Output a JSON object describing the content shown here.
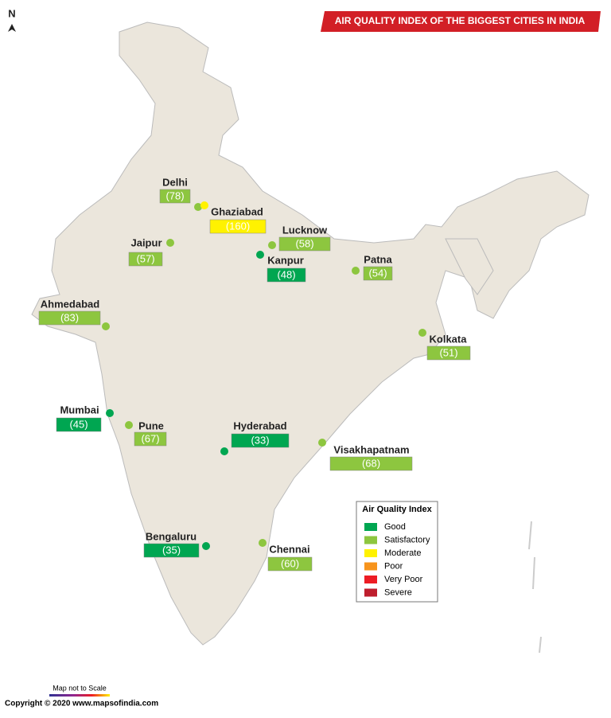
{
  "header": {
    "title": "AIR QUALITY INDEX OF THE BIGGEST CITIES IN INDIA",
    "north": "N"
  },
  "cities": [
    {
      "name": "Delhi",
      "aqi": 78,
      "aqi_label": "(78)",
      "category": 1
    },
    {
      "name": "Ghaziabad",
      "aqi": 160,
      "aqi_label": "(160)",
      "category": 2
    },
    {
      "name": "Lucknow",
      "aqi": 58,
      "aqi_label": "(58)",
      "category": 1
    },
    {
      "name": "Kanpur",
      "aqi": 48,
      "aqi_label": "(48)",
      "category": 0
    },
    {
      "name": "Jaipur",
      "aqi": 57,
      "aqi_label": "(57)",
      "category": 1
    },
    {
      "name": "Patna",
      "aqi": 54,
      "aqi_label": "(54)",
      "category": 1
    },
    {
      "name": "Ahmedabad",
      "aqi": 83,
      "aqi_label": "(83)",
      "category": 1
    },
    {
      "name": "Kolkata",
      "aqi": 51,
      "aqi_label": "(51)",
      "category": 1
    },
    {
      "name": "Mumbai",
      "aqi": 45,
      "aqi_label": "(45)",
      "category": 0
    },
    {
      "name": "Pune",
      "aqi": 67,
      "aqi_label": "(67)",
      "category": 1
    },
    {
      "name": "Hyderabad",
      "aqi": 33,
      "aqi_label": "(33)",
      "category": 0
    },
    {
      "name": "Visakhapatnam",
      "aqi": 68,
      "aqi_label": "(68)",
      "category": 1
    },
    {
      "name": "Bengaluru",
      "aqi": 35,
      "aqi_label": "(35)",
      "category": 0
    },
    {
      "name": "Chennai",
      "aqi": 60,
      "aqi_label": "(60)",
      "category": 1
    }
  ],
  "legend": {
    "title": "Air Quality Index",
    "items": [
      {
        "label": "Good",
        "color": "#00a651"
      },
      {
        "label": "Satisfactory",
        "color": "#8dc63f"
      },
      {
        "label": "Moderate",
        "color": "#fff200"
      },
      {
        "label": "Poor",
        "color": "#f7941d"
      },
      {
        "label": "Very Poor",
        "color": "#ed1c24"
      },
      {
        "label": "Severe",
        "color": "#be1e2d"
      }
    ]
  },
  "footer": {
    "scale_note": "Map not to Scale",
    "copyright": "Copyright © 2020 www.mapsofindia.com"
  }
}
